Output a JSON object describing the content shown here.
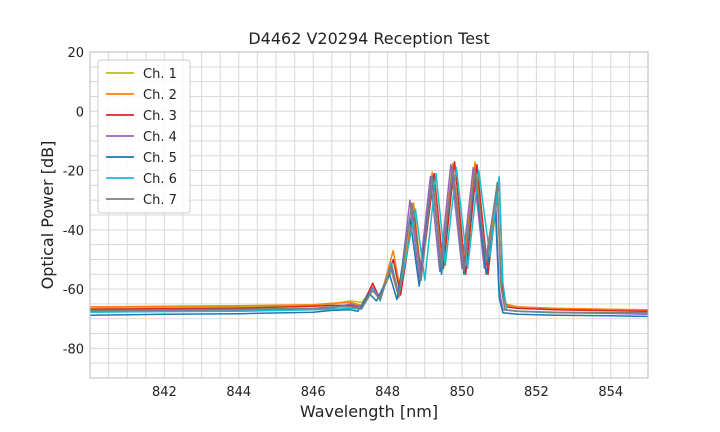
{
  "chart_data": {
    "type": "line",
    "title": "D4462 V20294 Reception Test",
    "xlabel": "Wavelength [nm]",
    "ylabel": "Optical Power [dB]",
    "xlim": [
      840,
      855
    ],
    "ylim": [
      -90,
      20
    ],
    "x_ticks": [
      842,
      844,
      846,
      848,
      850,
      852,
      854
    ],
    "y_ticks": [
      -80,
      -60,
      -40,
      -20,
      0,
      20
    ],
    "grid": true,
    "legend_position": "top-left",
    "series": [
      {
        "name": "Ch. 1",
        "color": "#bcbd22",
        "points": [
          [
            840,
            -66.5
          ],
          [
            842,
            -66.2
          ],
          [
            844,
            -66.0
          ],
          [
            846,
            -65.5
          ],
          [
            846.5,
            -65.0
          ],
          [
            847,
            -64.0
          ],
          [
            847.3,
            -64.5
          ],
          [
            847.6,
            -60.0
          ],
          [
            847.8,
            -62.5
          ],
          [
            848.1,
            -54.0
          ],
          [
            848.3,
            -63.0
          ],
          [
            848.7,
            -33.0
          ],
          [
            848.9,
            -57.0
          ],
          [
            849.2,
            -20.5
          ],
          [
            849.45,
            -52.5
          ],
          [
            849.75,
            -17.5
          ],
          [
            850.05,
            -52.5
          ],
          [
            850.35,
            -17.0
          ],
          [
            850.65,
            -50.0
          ],
          [
            850.95,
            -27.0
          ],
          [
            851.05,
            -60.0
          ],
          [
            851.15,
            -65.5
          ],
          [
            851.5,
            -66.0
          ],
          [
            852.5,
            -66.5
          ],
          [
            854,
            -67.0
          ],
          [
            855,
            -67.2
          ]
        ]
      },
      {
        "name": "Ch. 2",
        "color": "#ff7f0e",
        "points": [
          [
            840,
            -66.0
          ],
          [
            842,
            -65.8
          ],
          [
            844,
            -65.6
          ],
          [
            846,
            -65.3
          ],
          [
            846.5,
            -64.8
          ],
          [
            847,
            -64.5
          ],
          [
            847.3,
            -65.5
          ],
          [
            847.6,
            -58.5
          ],
          [
            847.8,
            -63.0
          ],
          [
            848.15,
            -47.0
          ],
          [
            848.35,
            -61.0
          ],
          [
            848.7,
            -31.0
          ],
          [
            848.9,
            -55.0
          ],
          [
            849.2,
            -21.0
          ],
          [
            849.45,
            -51.0
          ],
          [
            849.75,
            -18.0
          ],
          [
            850.05,
            -51.0
          ],
          [
            850.35,
            -17.5
          ],
          [
            850.65,
            -52.0
          ],
          [
            850.95,
            -27.0
          ],
          [
            851.05,
            -58.0
          ],
          [
            851.15,
            -65.0
          ],
          [
            851.5,
            -66.0
          ],
          [
            852.5,
            -66.5
          ],
          [
            854,
            -66.8
          ],
          [
            855,
            -67.0
          ]
        ]
      },
      {
        "name": "Ch. 3",
        "color": "#d62728",
        "points": [
          [
            840,
            -66.8
          ],
          [
            842,
            -66.6
          ],
          [
            844,
            -66.4
          ],
          [
            846,
            -65.8
          ],
          [
            846.5,
            -65.5
          ],
          [
            847,
            -65.5
          ],
          [
            847.3,
            -66.0
          ],
          [
            847.6,
            -58.0
          ],
          [
            847.8,
            -63.5
          ],
          [
            848.15,
            -50.0
          ],
          [
            848.35,
            -62.0
          ],
          [
            848.7,
            -34.0
          ],
          [
            848.9,
            -56.0
          ],
          [
            849.25,
            -21.0
          ],
          [
            849.5,
            -53.0
          ],
          [
            849.8,
            -17.0
          ],
          [
            850.1,
            -55.0
          ],
          [
            850.4,
            -18.0
          ],
          [
            850.7,
            -55.0
          ],
          [
            851.0,
            -23.0
          ],
          [
            851.1,
            -60.0
          ],
          [
            851.2,
            -66.0
          ],
          [
            851.5,
            -66.5
          ],
          [
            852.5,
            -67.0
          ],
          [
            854,
            -67.3
          ],
          [
            855,
            -67.5
          ]
        ]
      },
      {
        "name": "Ch. 4",
        "color": "#9467bd",
        "points": [
          [
            840,
            -67.5
          ],
          [
            842,
            -67.3
          ],
          [
            844,
            -67.0
          ],
          [
            846,
            -66.8
          ],
          [
            846.5,
            -66.5
          ],
          [
            847,
            -65.0
          ],
          [
            847.3,
            -66.0
          ],
          [
            847.6,
            -59.5
          ],
          [
            847.8,
            -63.0
          ],
          [
            848.1,
            -53.0
          ],
          [
            848.3,
            -62.5
          ],
          [
            848.6,
            -30.0
          ],
          [
            848.85,
            -56.0
          ],
          [
            849.15,
            -22.0
          ],
          [
            849.4,
            -54.0
          ],
          [
            849.7,
            -18.0
          ],
          [
            850.0,
            -53.0
          ],
          [
            850.3,
            -19.0
          ],
          [
            850.6,
            -53.0
          ],
          [
            850.9,
            -29.0
          ],
          [
            851.0,
            -60.0
          ],
          [
            851.1,
            -67.0
          ],
          [
            851.5,
            -67.5
          ],
          [
            852.5,
            -68.0
          ],
          [
            854,
            -68.2
          ],
          [
            855,
            -68.5
          ]
        ]
      },
      {
        "name": "Ch. 5",
        "color": "#1f77b4",
        "points": [
          [
            840,
            -68.8
          ],
          [
            842,
            -68.5
          ],
          [
            844,
            -68.3
          ],
          [
            846,
            -67.8
          ],
          [
            846.5,
            -67.2
          ],
          [
            847,
            -67.0
          ],
          [
            847.2,
            -67.5
          ],
          [
            847.5,
            -61.5
          ],
          [
            847.7,
            -64.0
          ],
          [
            848.05,
            -55.0
          ],
          [
            848.25,
            -63.5
          ],
          [
            848.6,
            -36.0
          ],
          [
            848.85,
            -59.0
          ],
          [
            849.2,
            -22.0
          ],
          [
            849.45,
            -55.0
          ],
          [
            849.75,
            -19.0
          ],
          [
            850.05,
            -55.0
          ],
          [
            850.35,
            -21.0
          ],
          [
            850.65,
            -55.0
          ],
          [
            850.9,
            -34.0
          ],
          [
            851.0,
            -63.0
          ],
          [
            851.1,
            -68.0
          ],
          [
            851.5,
            -68.5
          ],
          [
            852.5,
            -68.8
          ],
          [
            854,
            -69.0
          ],
          [
            855,
            -69.2
          ]
        ]
      },
      {
        "name": "Ch. 6",
        "color": "#17becf",
        "points": [
          [
            840,
            -67.8
          ],
          [
            842,
            -67.6
          ],
          [
            844,
            -67.5
          ],
          [
            846,
            -67.0
          ],
          [
            846.5,
            -66.8
          ],
          [
            847,
            -66.5
          ],
          [
            847.3,
            -66.8
          ],
          [
            847.6,
            -60.0
          ],
          [
            847.8,
            -64.0
          ],
          [
            848.1,
            -51.0
          ],
          [
            848.3,
            -62.0
          ],
          [
            848.75,
            -33.0
          ],
          [
            849.0,
            -57.0
          ],
          [
            849.3,
            -21.0
          ],
          [
            849.55,
            -52.0
          ],
          [
            849.85,
            -19.0
          ],
          [
            850.15,
            -53.0
          ],
          [
            850.45,
            -20.0
          ],
          [
            850.75,
            -49.0
          ],
          [
            851.0,
            -22.0
          ],
          [
            851.1,
            -58.0
          ],
          [
            851.2,
            -67.0
          ],
          [
            851.5,
            -67.5
          ],
          [
            852.5,
            -68.0
          ],
          [
            854,
            -68.0
          ],
          [
            855,
            -68.2
          ]
        ]
      },
      {
        "name": "Ch. 7",
        "color": "#7f7f7f",
        "points": [
          [
            840,
            -67.2
          ],
          [
            842,
            -67.0
          ],
          [
            844,
            -66.8
          ],
          [
            846,
            -66.5
          ],
          [
            846.5,
            -66.0
          ],
          [
            847,
            -66.0
          ],
          [
            847.3,
            -66.5
          ],
          [
            847.6,
            -60.5
          ],
          [
            847.8,
            -63.5
          ],
          [
            848.1,
            -52.0
          ],
          [
            848.3,
            -62.0
          ],
          [
            848.65,
            -31.0
          ],
          [
            848.9,
            -57.0
          ],
          [
            849.2,
            -22.0
          ],
          [
            849.45,
            -53.0
          ],
          [
            849.75,
            -19.0
          ],
          [
            850.05,
            -54.0
          ],
          [
            850.35,
            -19.5
          ],
          [
            850.65,
            -51.0
          ],
          [
            850.95,
            -24.0
          ],
          [
            851.05,
            -59.0
          ],
          [
            851.15,
            -67.0
          ],
          [
            851.5,
            -67.5
          ],
          [
            852.5,
            -67.8
          ],
          [
            854,
            -68.0
          ],
          [
            855,
            -68.0
          ]
        ]
      }
    ]
  }
}
